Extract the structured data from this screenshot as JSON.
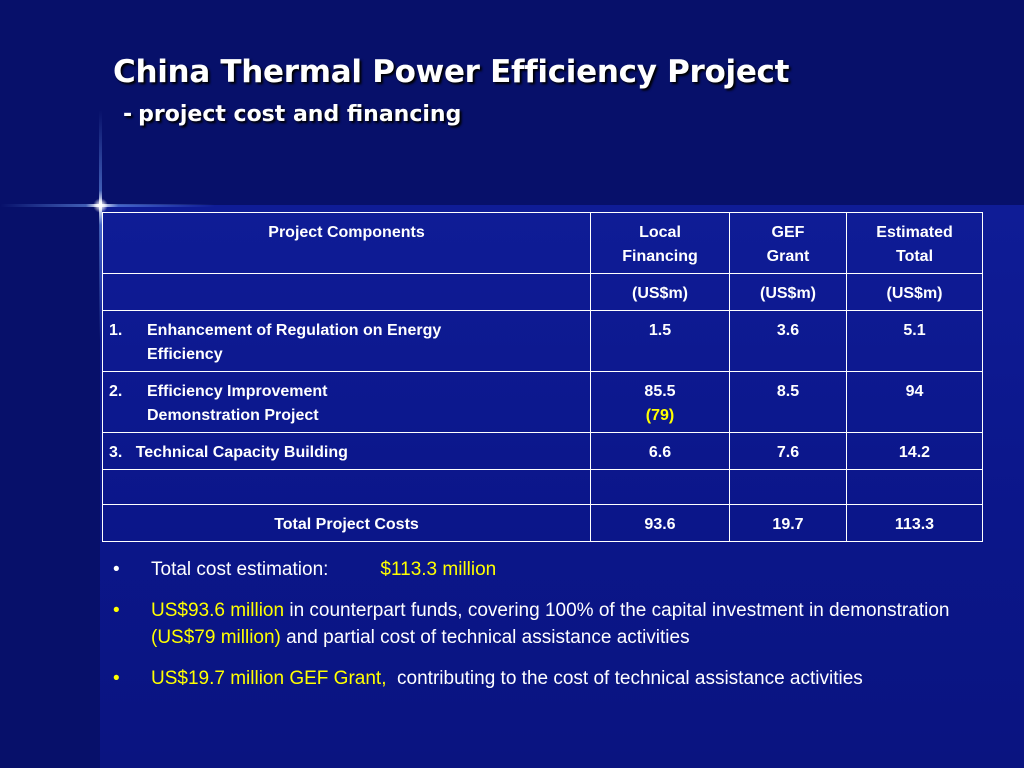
{
  "slide": {
    "title": "China Thermal Power Efficiency Project",
    "subtitle_dash": "-",
    "subtitle": "project cost and financing"
  },
  "table": {
    "headers": [
      "Project Components",
      "Local Financing",
      "GEF Grant",
      "Estimated Total"
    ],
    "units": [
      "",
      "(US$m)",
      "(US$m)",
      "(US$m)"
    ],
    "rows": [
      {
        "num": "1.",
        "component": "Enhancement of Regulation on Energy Efficiency",
        "local": "1.5",
        "local_note": "",
        "gef": "3.6",
        "total": "5.1"
      },
      {
        "num": "2.",
        "component": "Efficiency Improvement Demonstration Project",
        "local": "85.5",
        "local_note": "(79)",
        "gef": "8.5",
        "total": "94"
      },
      {
        "num": "3.",
        "component": "Technical Capacity Building",
        "local": "6.6",
        "local_note": "",
        "gef": "7.6",
        "total": "14.2"
      }
    ],
    "total": {
      "label": "Total Project Costs",
      "local": "93.6",
      "gef": "19.7",
      "total": "113.3"
    }
  },
  "bullets": {
    "b1": {
      "text": "Total cost estimation:",
      "value": "$113.3 million"
    },
    "b2": {
      "highlight1": "US$93.6 million",
      "text1": " in counterpart funds, covering 100% of the capital investment in demonstration ",
      "highlight2": "(US$79 million)",
      "text2": " and partial cost of technical assistance activities"
    },
    "b3": {
      "highlight": "US$19.7 million GEF Grant,",
      "text": "  contributing to the cost of technical assistance activities"
    }
  },
  "colors": {
    "background": "#0a1280",
    "highlight": "#ffff00",
    "text": "#ffffff"
  }
}
